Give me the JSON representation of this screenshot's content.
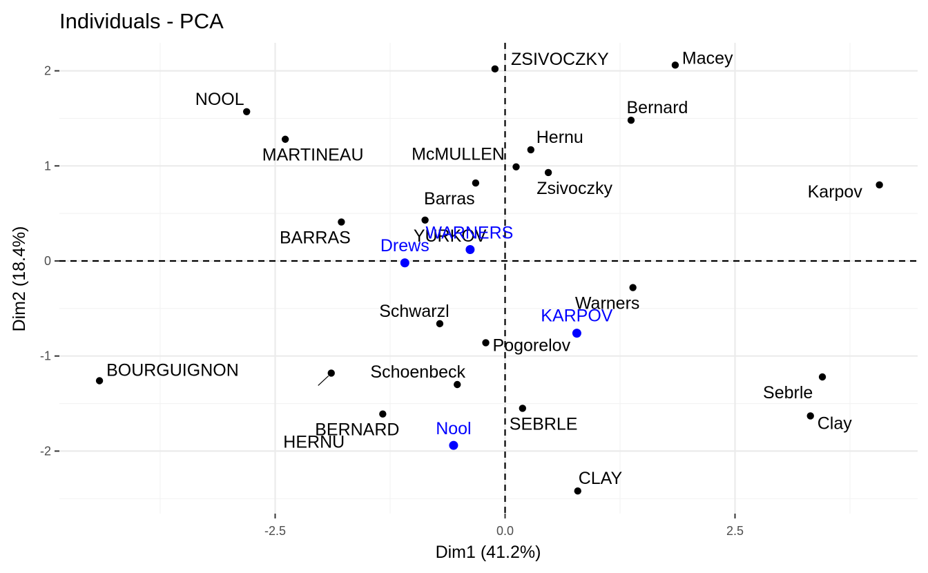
{
  "chart_data": {
    "type": "scatter",
    "title": "Individuals - PCA",
    "xlabel": "Dim1 (41.2%)",
    "ylabel": "Dim2 (18.4%)",
    "xlim": [
      -4.87,
      4.4
    ],
    "ylim": [
      -2.6,
      2.3
    ],
    "x_ticks": [
      -2.5,
      0,
      2.5
    ],
    "x_tick_labels": [
      "-2.5",
      "0.0",
      "2.5"
    ],
    "y_ticks": [
      -2,
      -1,
      0,
      1,
      2
    ],
    "y_tick_labels": [
      "-2",
      "-1",
      "0",
      "1",
      "2"
    ],
    "grid": true,
    "reference_lines": {
      "x": 0,
      "y": 0,
      "style": "dashed"
    },
    "colors": {
      "active": "#000000",
      "supplementary": "#0000ff"
    },
    "points": [
      {
        "label": "SEBRLE",
        "x": 0.19,
        "y": -1.55,
        "group": "active"
      },
      {
        "label": "CLAY",
        "x": 0.79,
        "y": -2.42,
        "group": "active"
      },
      {
        "label": "BERNARD",
        "x": -1.33,
        "y": -1.61,
        "group": "active"
      },
      {
        "label": "YURKOV",
        "x": -0.87,
        "y": 0.43,
        "group": "active"
      },
      {
        "label": "ZSIVOCZKY",
        "x": -0.11,
        "y": 2.02,
        "group": "active"
      },
      {
        "label": "McMULLEN",
        "x": 0.12,
        "y": 0.99,
        "group": "active"
      },
      {
        "label": "MARTINEAU",
        "x": -2.39,
        "y": 1.28,
        "group": "active"
      },
      {
        "label": "HERNU",
        "x": -1.89,
        "y": -1.18,
        "group": "active"
      },
      {
        "label": "BARRAS",
        "x": -1.78,
        "y": 0.41,
        "group": "active"
      },
      {
        "label": "NOOL",
        "x": -2.81,
        "y": 1.57,
        "group": "active"
      },
      {
        "label": "BOURGUIGNON",
        "x": -4.41,
        "y": -1.26,
        "group": "active"
      },
      {
        "label": "Sebrle",
        "x": 3.45,
        "y": -1.22,
        "group": "active"
      },
      {
        "label": "Clay",
        "x": 3.32,
        "y": -1.63,
        "group": "active"
      },
      {
        "label": "Karpov",
        "x": 4.07,
        "y": 0.8,
        "group": "active"
      },
      {
        "label": "Macey",
        "x": 1.85,
        "y": 2.06,
        "group": "active"
      },
      {
        "label": "Warners",
        "x": 1.39,
        "y": -0.28,
        "group": "active"
      },
      {
        "label": "Zsivoczky",
        "x": 0.47,
        "y": 0.93,
        "group": "active"
      },
      {
        "label": "Hernu",
        "x": 0.28,
        "y": 1.17,
        "group": "active"
      },
      {
        "label": "Bernard",
        "x": 1.37,
        "y": 1.48,
        "group": "active"
      },
      {
        "label": "Schwarzl",
        "x": -0.71,
        "y": -0.66,
        "group": "active"
      },
      {
        "label": "Pogorelov",
        "x": -0.21,
        "y": -0.86,
        "group": "active"
      },
      {
        "label": "Schoenbeck",
        "x": -0.52,
        "y": -1.3,
        "group": "active"
      },
      {
        "label": "Barras",
        "x": -0.32,
        "y": 0.82,
        "group": "active"
      },
      {
        "label": "KARPOV",
        "x": 0.78,
        "y": -0.76,
        "group": "supplementary"
      },
      {
        "label": "WARNERS",
        "x": -0.38,
        "y": 0.12,
        "group": "supplementary"
      },
      {
        "label": "Nool",
        "x": -0.56,
        "y": -1.94,
        "group": "supplementary"
      },
      {
        "label": "Drews",
        "x": -1.09,
        "y": -0.02,
        "group": "supplementary"
      }
    ]
  }
}
